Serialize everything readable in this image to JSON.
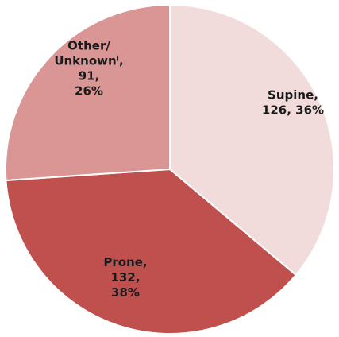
{
  "chart_data": {
    "type": "pie",
    "slices": [
      {
        "label": "Supine",
        "value": 126,
        "percent": "36%",
        "color": "#f2dcdb",
        "label_lines": [
          "Supine,",
          "126, 36%"
        ]
      },
      {
        "label": "Prone",
        "value": 132,
        "percent": "38%",
        "color": "#c0504d",
        "label_lines": [
          "Prone,",
          "132,",
          "38%"
        ]
      },
      {
        "label": "Other/ Unknownⁱ",
        "value": 91,
        "percent": "26%",
        "color": "#d99694",
        "label_lines": [
          "Other/",
          "Unknownⁱ,",
          "91,",
          "26%"
        ]
      }
    ]
  }
}
